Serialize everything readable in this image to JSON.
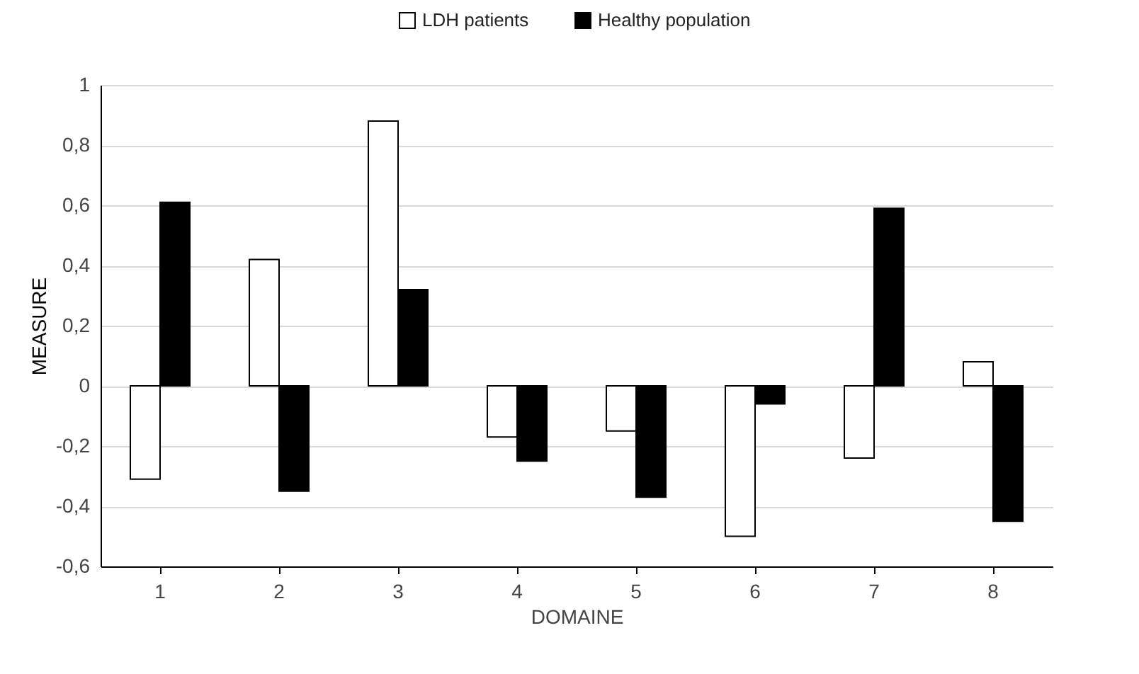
{
  "chart_data": {
    "type": "bar",
    "xlabel": "DOMAINE",
    "ylabel": "MEASURE",
    "categories": [
      "1",
      "2",
      "3",
      "4",
      "5",
      "6",
      "7",
      "8"
    ],
    "series": [
      {
        "name": "LDH patients",
        "color": "#ffffff",
        "values": [
          -0.31,
          0.42,
          0.88,
          -0.17,
          -0.15,
          -0.5,
          -0.24,
          0.08
        ]
      },
      {
        "name": "Healthy population",
        "color": "#000000",
        "values": [
          0.61,
          -0.35,
          0.32,
          -0.25,
          -0.37,
          -0.06,
          0.59,
          -0.45
        ]
      }
    ],
    "ylim": [
      -0.6,
      1
    ],
    "yticks": [
      {
        "value": -0.6,
        "label": "-0,6"
      },
      {
        "value": -0.4,
        "label": "-0,4"
      },
      {
        "value": -0.2,
        "label": "-0,2"
      },
      {
        "value": 0,
        "label": "0"
      },
      {
        "value": 0.2,
        "label": "0,2"
      },
      {
        "value": 0.4,
        "label": "0,4"
      },
      {
        "value": 0.6,
        "label": "0,6"
      },
      {
        "value": 0.8,
        "label": "0,8"
      },
      {
        "value": 1,
        "label": "1"
      }
    ],
    "grid": "y",
    "legend": "top"
  }
}
